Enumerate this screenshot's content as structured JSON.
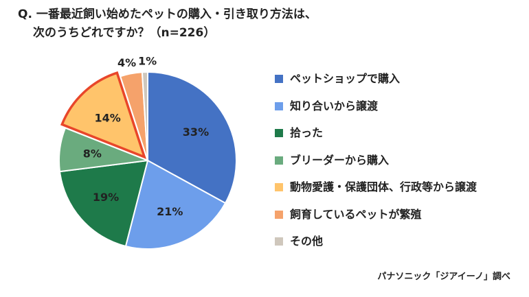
{
  "question": {
    "line1": "Q. 一番最近飼い始めたペットの購入・引き取り方法は、",
    "line2": "次のうちどれですか？（n=226）"
  },
  "source": "パナソニック「ジアイーノ」調べ",
  "chart_data": {
    "type": "pie",
    "categories": [
      "ペットショップで購入",
      "知り合いから譲渡",
      "拾った",
      "ブリーダーから購入",
      "動物愛護・保護団体、行政等から譲渡",
      "飼育しているペットが繁殖",
      "その他"
    ],
    "values": [
      33,
      21,
      19,
      8,
      14,
      4,
      1
    ],
    "labels": [
      "33%",
      "21%",
      "19%",
      "8%",
      "14%",
      "4%",
      "1%"
    ],
    "colors": [
      "#4472c4",
      "#6d9eeb",
      "#1e7a4a",
      "#6aab7e",
      "#ffc46b",
      "#f5a26b",
      "#cfc7bc"
    ],
    "highlight": "動物愛護・保護団体、行政等から譲渡",
    "highlight_color": "#e8462a",
    "legend_position": "right"
  }
}
